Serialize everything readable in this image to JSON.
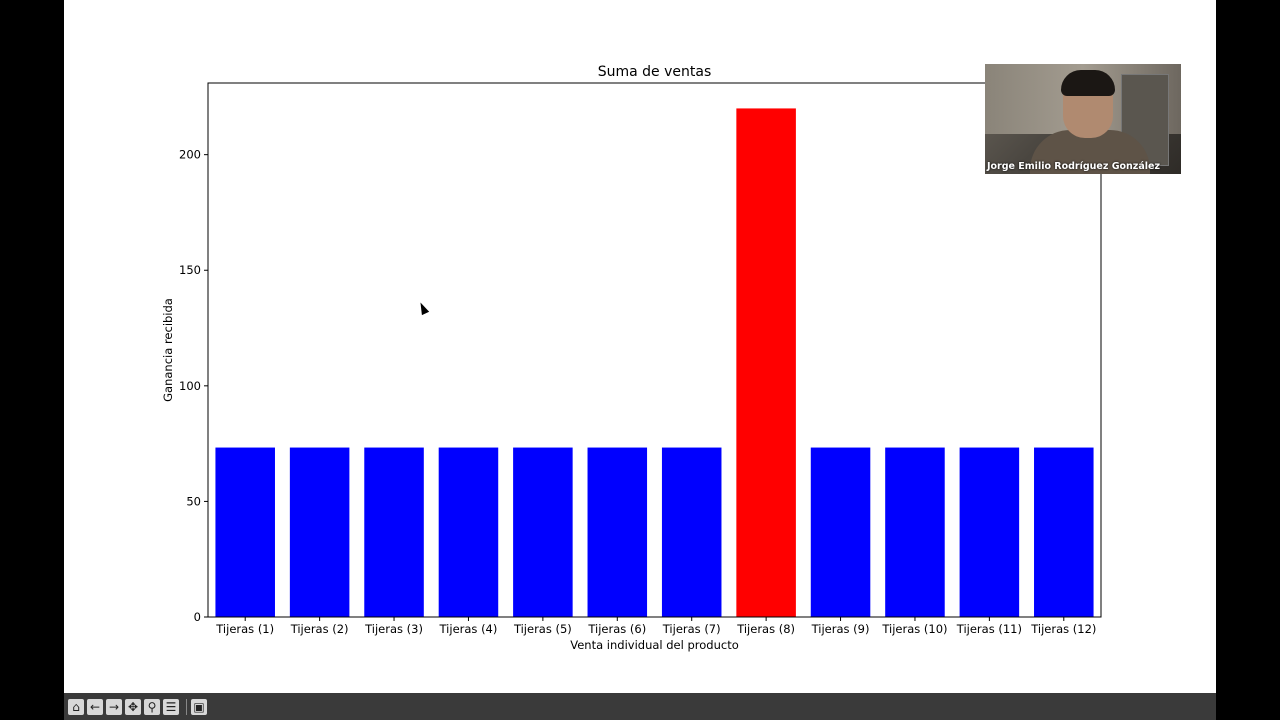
{
  "chart_data": {
    "type": "bar",
    "title": "Suma de ventas",
    "xlabel": "Venta individual del producto",
    "ylabel": "Ganancia recibida",
    "categories": [
      "Tijeras (1)",
      "Tijeras (2)",
      "Tijeras (3)",
      "Tijeras (4)",
      "Tijeras (5)",
      "Tijeras (6)",
      "Tijeras (7)",
      "Tijeras (8)",
      "Tijeras (9)",
      "Tijeras (10)",
      "Tijeras (11)",
      "Tijeras (12)"
    ],
    "values": [
      73.3,
      73.3,
      73.3,
      73.3,
      73.3,
      73.3,
      73.3,
      220,
      73.3,
      73.3,
      73.3,
      73.3
    ],
    "bar_colors": [
      "#0000ff",
      "#0000ff",
      "#0000ff",
      "#0000ff",
      "#0000ff",
      "#0000ff",
      "#0000ff",
      "#ff0000",
      "#0000ff",
      "#0000ff",
      "#0000ff",
      "#0000ff"
    ],
    "yticks": [
      0,
      50,
      100,
      150,
      200
    ],
    "ylim": [
      0,
      231
    ],
    "grid": false
  },
  "video": {
    "participant_name": "Jorge Emilio Rodríguez González"
  },
  "toolbar": {
    "icons": [
      "home-icon",
      "back-arrow-icon",
      "forward-arrow-icon",
      "pan-icon",
      "zoom-icon",
      "configure-subplots-icon",
      "save-icon"
    ]
  }
}
